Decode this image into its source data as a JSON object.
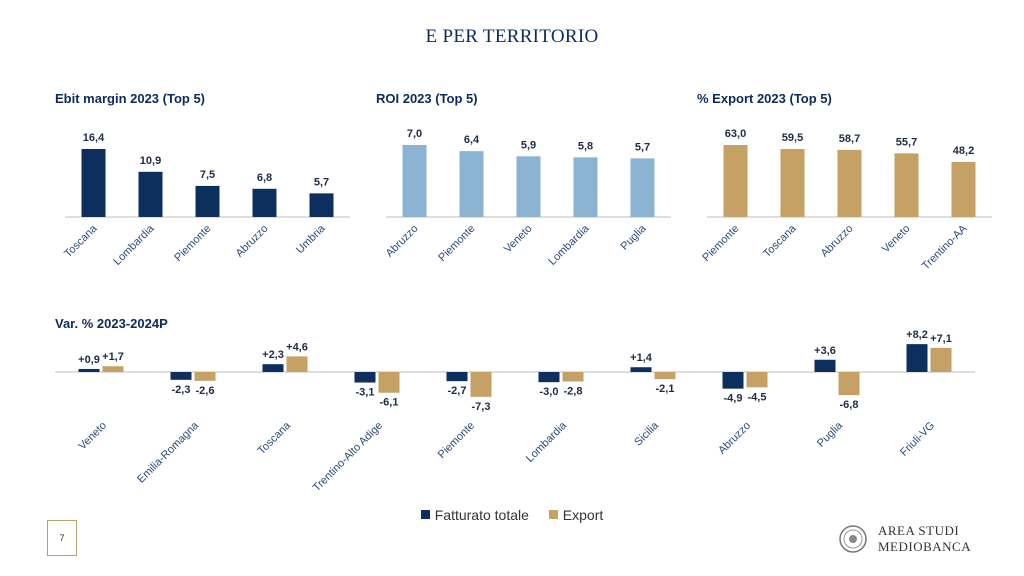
{
  "page": {
    "title": "E PER TERRITORIO",
    "page_number": "7",
    "logo_line1": "AREA STUDI",
    "logo_line2": "MEDIOBANCA"
  },
  "colors": {
    "navy": "#0d2f5e",
    "light_blue": "#8db3d3",
    "gold": "#c5a165",
    "axis": "#bfbfbf"
  },
  "legend": {
    "fatturato": "Fatturato totale",
    "export": "Export"
  },
  "chart_data": [
    {
      "type": "bar",
      "title": "Ebit margin 2023 (Top 5)",
      "categories": [
        "Toscana",
        "Lombardia",
        "Piemonte",
        "Abruzzo",
        "Umbria"
      ],
      "values": [
        16.4,
        10.9,
        7.5,
        6.8,
        5.7
      ],
      "labels": [
        "16,4",
        "10,9",
        "7,5",
        "6,8",
        "5,7"
      ]
    },
    {
      "type": "bar",
      "title": "ROI 2023 (Top 5)",
      "categories": [
        "Abruzzo",
        "Piemonte",
        "Veneto",
        "Lombardia",
        "Puglia"
      ],
      "values": [
        7.0,
        6.4,
        5.9,
        5.8,
        5.7
      ],
      "labels": [
        "7,0",
        "6,4",
        "5,9",
        "5,8",
        "5,7"
      ]
    },
    {
      "type": "bar",
      "title": "% Export 2023 (Top 5)",
      "categories": [
        "Piemonte",
        "Toscana",
        "Abruzzo",
        "Veneto",
        "Trentino-AA"
      ],
      "values": [
        63.0,
        59.5,
        58.7,
        55.7,
        48.2
      ],
      "labels": [
        "63,0",
        "59,5",
        "58,7",
        "55,7",
        "48,2"
      ]
    },
    {
      "type": "bar",
      "title": "Var. % 2023-2024P",
      "categories": [
        "Veneto",
        "Emilia-Romagna",
        "Toscana",
        "Trentino-Alto Adige",
        "Piemonte",
        "Lombardia",
        "Sicilia",
        "Abruzzo",
        "Puglia",
        "Friuli-VG"
      ],
      "series": [
        {
          "name": "Fatturato totale",
          "values": [
            0.9,
            -2.3,
            2.3,
            -3.1,
            -2.7,
            -3.0,
            1.4,
            -4.9,
            3.6,
            8.2
          ],
          "labels": [
            "+0,9",
            "-2,3",
            "+2,3",
            "-3,1",
            "-2,7",
            "-3,0",
            "+1,4",
            "-4,9",
            "+3,6",
            "+8,2"
          ]
        },
        {
          "name": "Export",
          "values": [
            1.7,
            -2.6,
            4.6,
            -6.1,
            -7.3,
            -2.8,
            -2.1,
            -4.5,
            -6.8,
            7.1
          ],
          "labels": [
            "+1,7",
            "-2,6",
            "+4,6",
            "-6,1",
            "-7,3",
            "-2,8",
            "-2,1",
            "-4,5",
            "-6,8",
            "+7,1"
          ]
        }
      ]
    }
  ]
}
